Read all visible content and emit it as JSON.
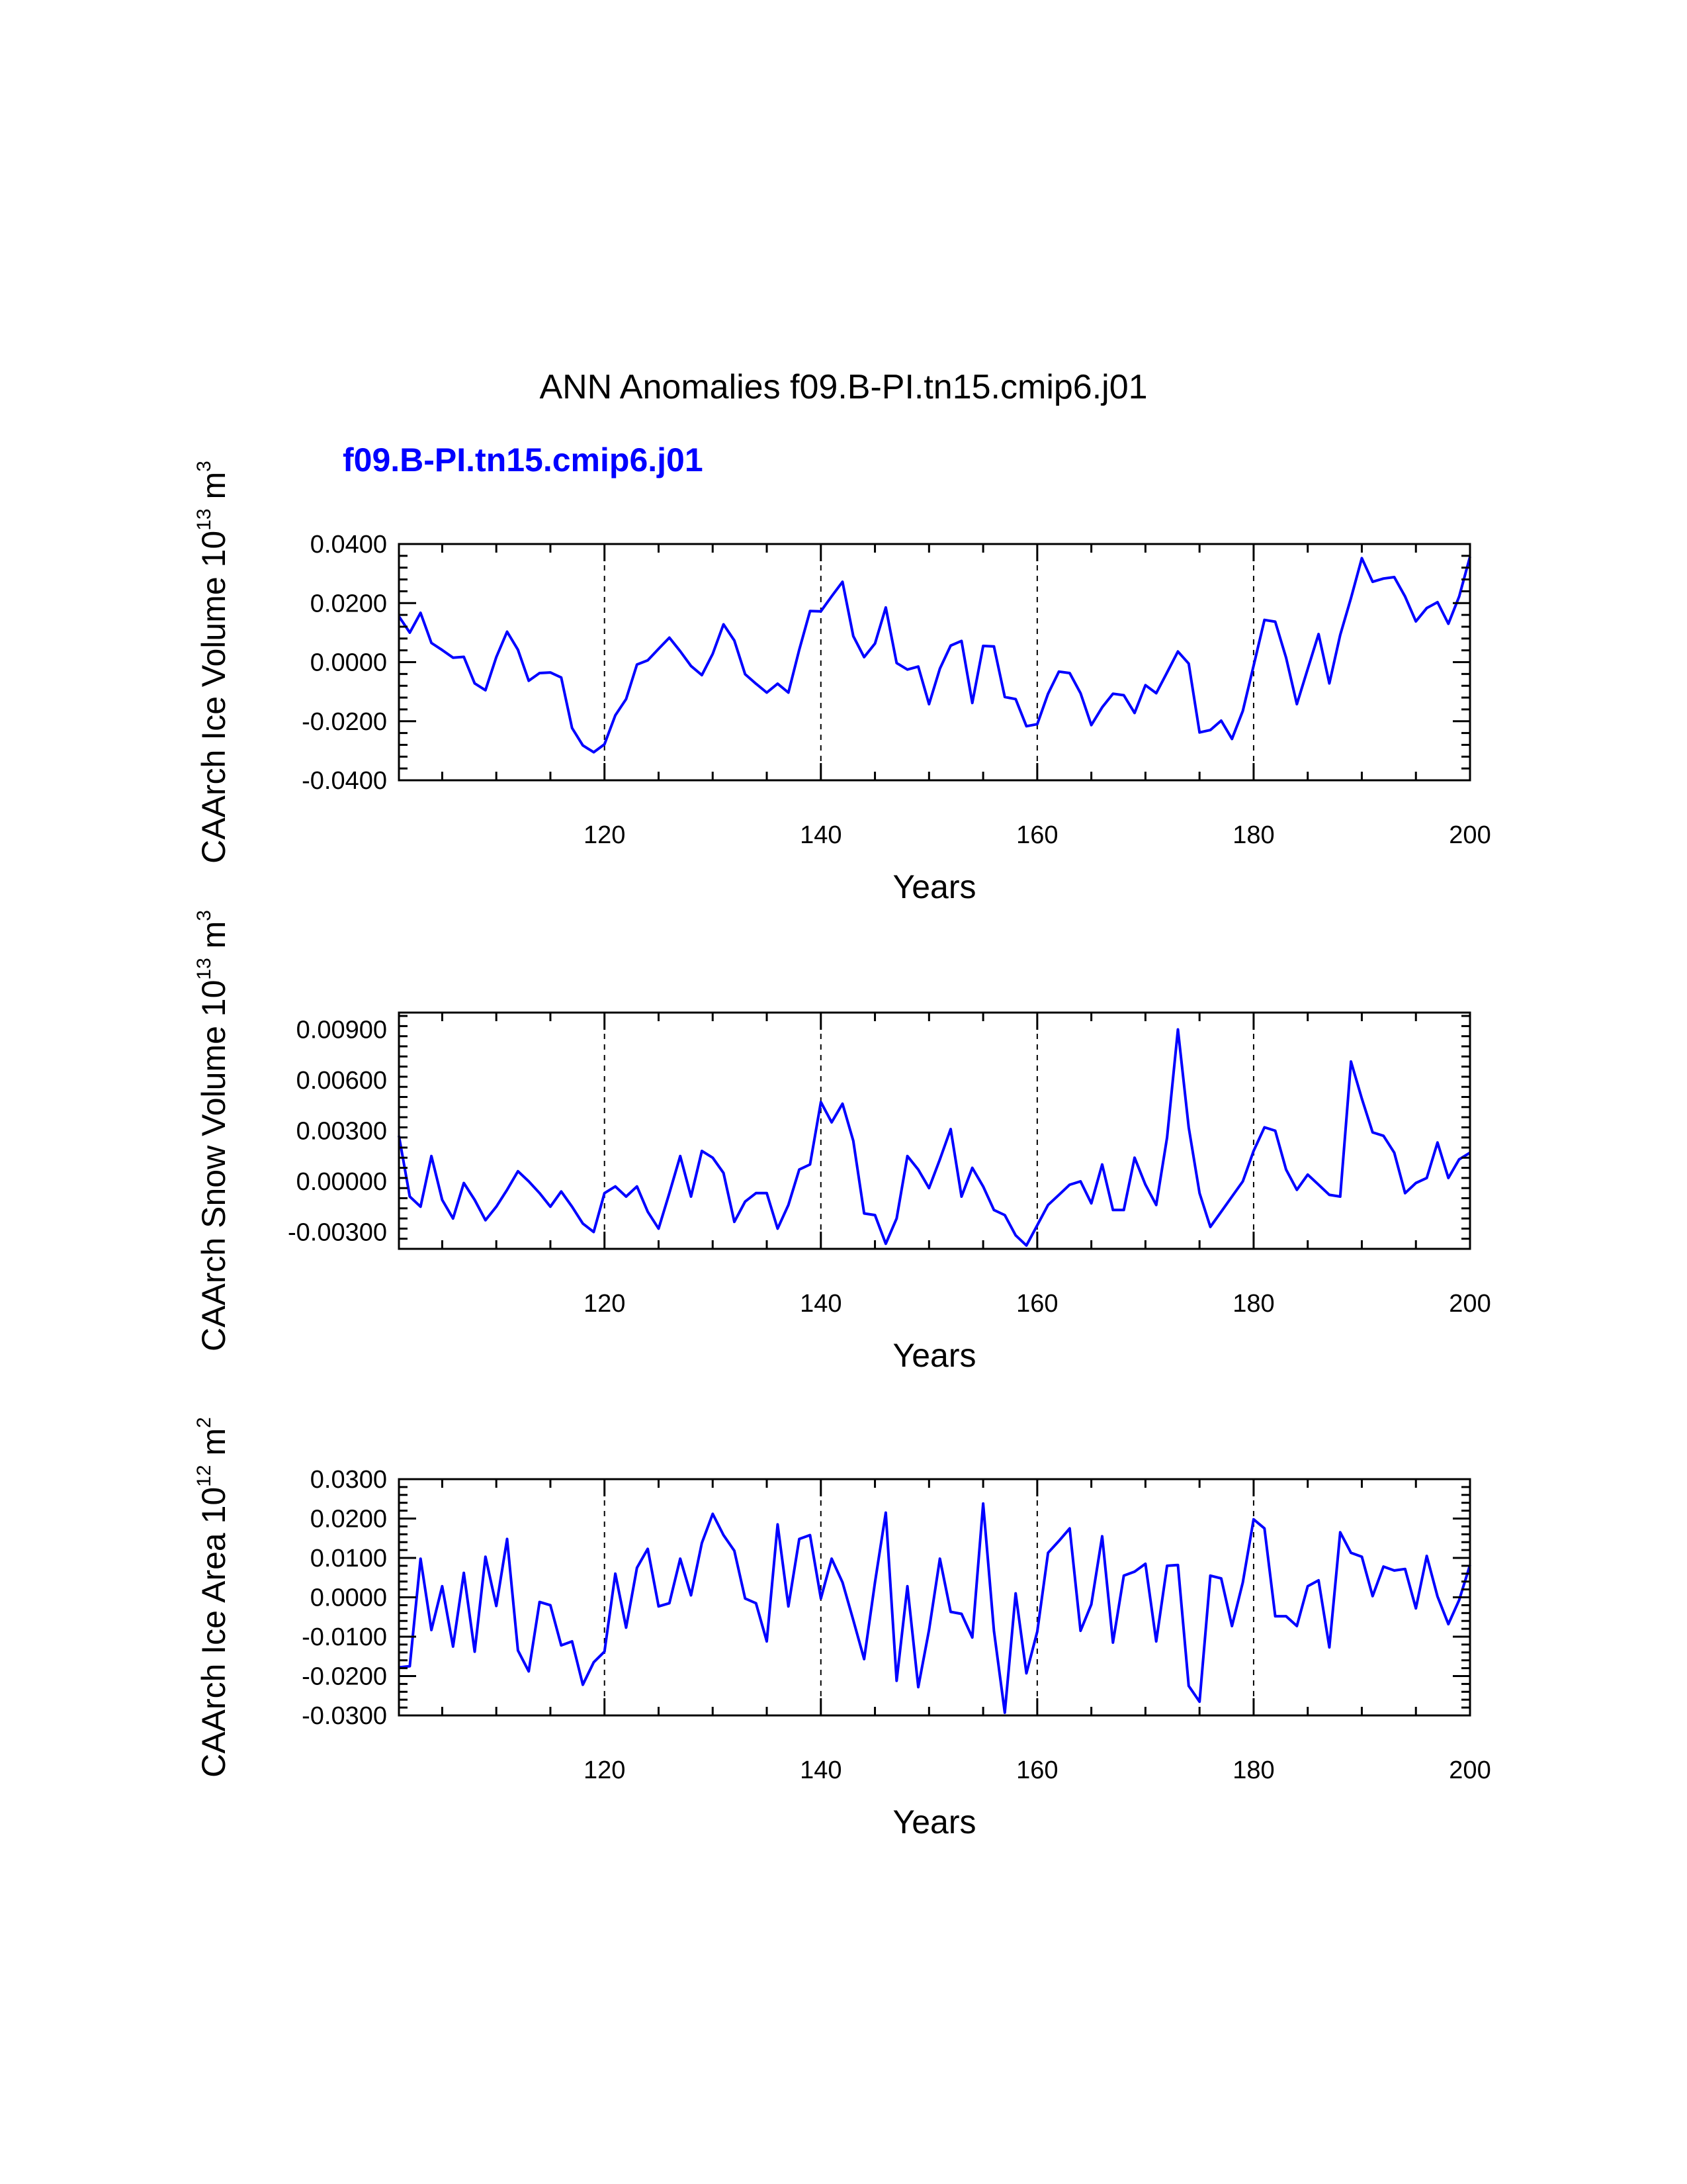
{
  "title": "ANN Anomalies f09.B-PI.tn15.cmip6.j01",
  "case_label": "f09.B-PI.tn15.cmip6.j01",
  "colors": {
    "line": "#0000ff",
    "case_label": "#0000ff",
    "axis": "#000000"
  },
  "chart_data": [
    {
      "type": "line",
      "id": "ice-volume",
      "ylabel": {
        "text": "CAArch Ice Volume 10",
        "exp": "13",
        "unit": " m",
        "unit_exp": "3"
      },
      "xlabel": "Years",
      "xlim": [
        101,
        200
      ],
      "ylim": [
        -0.04,
        0.04
      ],
      "yticks": [
        "-0.0400",
        "-0.0200",
        "0.0000",
        "0.0200",
        "0.0400"
      ],
      "yticks_values": [
        -0.04,
        -0.02,
        0.0,
        0.02,
        0.04
      ],
      "xticks": [
        "120",
        "140",
        "160",
        "180",
        "200"
      ],
      "xticks_values": [
        120,
        140,
        160,
        180,
        200
      ],
      "ref_lines_x": [
        120,
        140,
        160,
        180
      ],
      "series": [
        {
          "name": "f09.B-PI.tn15.cmip6.j01",
          "x_start": 101,
          "values": [
            0.0155,
            0.01,
            0.0167,
            0.0065,
            0.0041,
            0.0015,
            0.0018,
            -0.0072,
            -0.0095,
            0.0017,
            0.0103,
            0.0042,
            -0.0063,
            -0.0037,
            -0.0035,
            -0.0052,
            -0.0223,
            -0.0282,
            -0.0305,
            -0.0278,
            -0.018,
            -0.0125,
            -0.0008,
            0.0006,
            0.0045,
            0.0083,
            0.0037,
            -0.0013,
            -0.0044,
            0.0028,
            0.0128,
            0.0073,
            -0.0041,
            -0.0073,
            -0.0103,
            -0.0073,
            -0.0103,
            0.0042,
            0.0173,
            0.0172,
            0.0223,
            0.0272,
            0.0088,
            0.0017,
            0.0063,
            0.0185,
            -0.0003,
            -0.0025,
            -0.0015,
            -0.0142,
            -0.0022,
            0.0056,
            0.0072,
            -0.0138,
            0.0055,
            0.0053,
            -0.0118,
            -0.0125,
            -0.0217,
            -0.021,
            -0.0107,
            -0.0032,
            -0.0037,
            -0.0105,
            -0.0213,
            -0.0153,
            -0.0107,
            -0.0112,
            -0.0172,
            -0.0078,
            -0.0105,
            -0.0035,
            0.0036,
            -0.0005,
            -0.0238,
            -0.023,
            -0.0198,
            -0.026,
            -0.0165,
            -0.0012,
            0.0143,
            0.0137,
            0.0015,
            -0.0142,
            -0.0023,
            0.0095,
            -0.0072,
            0.0092,
            0.0217,
            0.0352,
            0.0272,
            0.0283,
            0.0288,
            0.0222,
            0.0138,
            0.0183,
            0.0203,
            0.013,
            0.0222,
            0.0357
          ]
        }
      ]
    },
    {
      "type": "line",
      "id": "snow-volume",
      "ylabel": {
        "text": "CAArch Snow Volume 10",
        "exp": "13",
        "unit": " m",
        "unit_exp": "3"
      },
      "xlabel": "Years",
      "xlim": [
        101,
        200
      ],
      "ylim": [
        -0.004,
        0.01
      ],
      "yticks": [
        "-0.00300",
        "0.00000",
        "0.00300",
        "0.00600",
        "0.00900"
      ],
      "yticks_values": [
        -0.003,
        0.0,
        0.003,
        0.006,
        0.009
      ],
      "xticks": [
        "120",
        "140",
        "160",
        "180",
        "200"
      ],
      "xticks_values": [
        120,
        140,
        160,
        180,
        200
      ],
      "ref_lines_x": [
        120,
        140,
        160,
        180
      ],
      "series": [
        {
          "name": "f09.B-PI.tn15.cmip6.j01",
          "x_start": 101,
          "values": [
            0.0027,
            -0.0009,
            -0.0015,
            0.0015,
            -0.0011,
            -0.0022,
            -0.0001,
            -0.0011,
            -0.0023,
            -0.0015,
            -0.0005,
            0.0006,
            0.0,
            -0.0007,
            -0.0015,
            -0.0006,
            -0.0015,
            -0.0025,
            -0.003,
            -0.0007,
            -0.0003,
            -0.0009,
            -0.0003,
            -0.0018,
            -0.0028,
            -0.0007,
            0.0015,
            -0.0009,
            0.0018,
            0.0014,
            0.0005,
            -0.0024,
            -0.0012,
            -0.0007,
            -0.0007,
            -0.0028,
            -0.0014,
            0.0007,
            0.001,
            0.0047,
            0.0035,
            0.0046,
            0.0024,
            -0.0019,
            -0.002,
            -0.0037,
            -0.0022,
            0.0015,
            0.0007,
            -0.0004,
            0.0013,
            0.0031,
            -0.0009,
            0.0008,
            -0.0003,
            -0.0017,
            -0.002,
            -0.0032,
            -0.0038,
            -0.0026,
            -0.0014,
            -0.0008,
            -0.0002,
            0.0,
            -0.0013,
            0.001,
            -0.0017,
            -0.0017,
            0.0014,
            -0.0002,
            -0.0014,
            0.0026,
            0.009,
            0.0032,
            -0.0007,
            -0.0027,
            -0.0018,
            -0.0009,
            0.0,
            0.0018,
            0.0032,
            0.003,
            0.0007,
            -0.0005,
            0.0004,
            -0.0002,
            -0.0008,
            -0.0009,
            0.0071,
            0.0049,
            0.0029,
            0.0027,
            0.0017,
            -0.0007,
            -0.0001,
            0.0002,
            0.0023,
            0.0002,
            0.0013,
            0.0017
          ]
        }
      ]
    },
    {
      "type": "line",
      "id": "ice-area",
      "ylabel": {
        "text": "CAArch Ice Area 10",
        "exp": "12",
        "unit": " m",
        "unit_exp": "2"
      },
      "xlabel": "Years",
      "xlim": [
        101,
        200
      ],
      "ylim": [
        -0.03,
        0.03
      ],
      "yticks": [
        "-0.0300",
        "-0.0200",
        "-0.0100",
        "0.0000",
        "0.0100",
        "0.0200",
        "0.0300"
      ],
      "yticks_values": [
        -0.03,
        -0.02,
        -0.01,
        0.0,
        0.01,
        0.02,
        0.03
      ],
      "xticks": [
        "120",
        "140",
        "160",
        "180",
        "200"
      ],
      "xticks_values": [
        120,
        140,
        160,
        180,
        200
      ],
      "ref_lines_x": [
        120,
        140,
        160,
        180
      ],
      "series": [
        {
          "name": "f09.B-PI.tn15.cmip6.j01",
          "x_start": 101,
          "values": [
            -0.0178,
            -0.0175,
            0.0098,
            -0.0083,
            0.0028,
            -0.0125,
            0.0062,
            -0.0138,
            0.0103,
            -0.0022,
            0.0148,
            -0.0135,
            -0.0188,
            -0.0012,
            -0.002,
            -0.0122,
            -0.0112,
            -0.0222,
            -0.0165,
            -0.0138,
            0.006,
            -0.0077,
            0.0075,
            0.0123,
            -0.0023,
            -0.0015,
            0.0098,
            0.0005,
            0.0138,
            0.0212,
            0.0158,
            0.0118,
            -0.0003,
            -0.0015,
            -0.0112,
            0.0185,
            -0.0023,
            0.0148,
            0.0158,
            -0.0003,
            0.0098,
            0.0038,
            -0.0058,
            -0.0157,
            0.0038,
            0.0215,
            -0.0212,
            0.0028,
            -0.0228,
            -0.0083,
            0.0098,
            -0.0037,
            -0.0042,
            -0.0102,
            0.0238,
            -0.0085,
            -0.0293,
            0.001,
            -0.0193,
            -0.0087,
            0.0113,
            0.0143,
            0.0175,
            -0.0085,
            -0.0018,
            0.0155,
            -0.0115,
            0.0055,
            0.0065,
            0.0085,
            -0.0112,
            0.008,
            0.0082,
            -0.0225,
            -0.0265,
            0.0055,
            0.0048,
            -0.0073,
            0.0038,
            0.0198,
            0.0175,
            -0.0048,
            -0.0048,
            -0.0073,
            0.0028,
            0.0043,
            -0.0127,
            0.0165,
            0.0113,
            0.0103,
            0.0003,
            0.0078,
            0.0068,
            0.0072,
            -0.0028,
            0.0105,
            0.0002,
            -0.0068,
            -0.0007,
            0.0082
          ]
        }
      ]
    }
  ]
}
